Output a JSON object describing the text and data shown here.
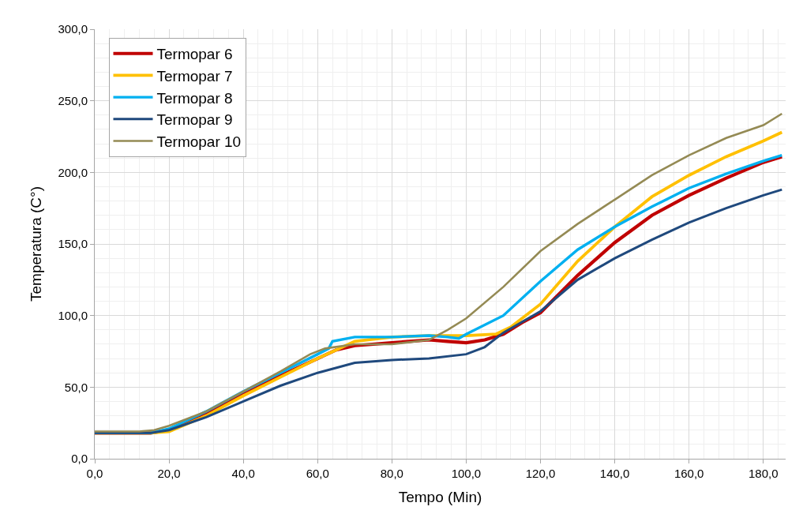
{
  "chart_data": {
    "type": "line",
    "xlabel": "Tempo (Min)",
    "ylabel": "Temperatura (C°)",
    "xlim": [
      0,
      186
    ],
    "ylim": [
      0,
      300
    ],
    "xticks": [
      {
        "value": 0,
        "label": "0,0"
      },
      {
        "value": 20,
        "label": "20,0"
      },
      {
        "value": 40,
        "label": "40,0"
      },
      {
        "value": 60,
        "label": "60,0"
      },
      {
        "value": 80,
        "label": "80,0"
      },
      {
        "value": 100,
        "label": "100,0"
      },
      {
        "value": 120,
        "label": "120,0"
      },
      {
        "value": 140,
        "label": "140,0"
      },
      {
        "value": 160,
        "label": "160,0"
      },
      {
        "value": 180,
        "label": "180,0"
      }
    ],
    "yticks": [
      {
        "value": 0,
        "label": "0,0"
      },
      {
        "value": 50,
        "label": "50,0"
      },
      {
        "value": 100,
        "label": "100,0"
      },
      {
        "value": 150,
        "label": "150,0"
      },
      {
        "value": 200,
        "label": "200,0"
      },
      {
        "value": 250,
        "label": "250,0"
      },
      {
        "value": 300,
        "label": "300,0"
      }
    ],
    "grid": true,
    "legend": "top left",
    "marker": "none",
    "line_style": "solid",
    "series": [
      {
        "name": "Termopar 6",
        "color": "#c00000",
        "x": [
          0,
          15,
          20,
          30,
          40,
          50,
          60,
          65,
          70,
          80,
          90,
          95,
          100,
          105,
          110,
          115,
          120,
          130,
          140,
          150,
          160,
          170,
          180,
          185
        ],
        "values": [
          18,
          18,
          20,
          31,
          45,
          58,
          70,
          76,
          79,
          81,
          83,
          82,
          81,
          83,
          87,
          95,
          102,
          128,
          151,
          170,
          184,
          196,
          207,
          211
        ]
      },
      {
        "name": "Termopar 7",
        "color": "#ffc000",
        "x": [
          0,
          15,
          20,
          30,
          40,
          50,
          60,
          65,
          70,
          80,
          90,
          100,
          108,
          112,
          120,
          130,
          140,
          150,
          160,
          170,
          180,
          185
        ],
        "values": [
          18,
          18,
          19,
          30,
          44,
          57,
          70,
          76,
          82,
          85,
          86,
          86,
          87,
          92,
          108,
          138,
          162,
          183,
          198,
          211,
          222,
          228
        ]
      },
      {
        "name": "Termopar 8",
        "color": "#00b0f0",
        "x": [
          0,
          15,
          20,
          30,
          40,
          50,
          60,
          63,
          64,
          70,
          80,
          90,
          95,
          98,
          100,
          110,
          120,
          130,
          140,
          150,
          160,
          170,
          180,
          185
        ],
        "values": [
          18,
          18,
          21,
          33,
          47,
          60,
          73,
          77,
          82,
          85,
          85,
          86,
          85,
          84,
          87,
          100,
          124,
          146,
          162,
          176,
          189,
          199,
          208,
          212
        ]
      },
      {
        "name": "Termopar 9",
        "color": "#1f497d",
        "x": [
          0,
          15,
          20,
          30,
          40,
          50,
          60,
          70,
          80,
          90,
          100,
          105,
          110,
          120,
          130,
          140,
          150,
          160,
          170,
          180,
          185
        ],
        "values": [
          18,
          18,
          20,
          29,
          40,
          51,
          60,
          67,
          69,
          70,
          73,
          78,
          88,
          103,
          125,
          140,
          153,
          165,
          175,
          184,
          188
        ]
      },
      {
        "name": "Termopar 10",
        "color": "#948a54",
        "x": [
          0,
          12,
          16,
          20,
          30,
          40,
          50,
          58,
          62,
          70,
          80,
          90,
          95,
          100,
          110,
          120,
          130,
          140,
          150,
          160,
          170,
          180,
          185
        ],
        "values": [
          19,
          19,
          20,
          23,
          33,
          47,
          61,
          73,
          77,
          80,
          80,
          83,
          90,
          98,
          120,
          145,
          164,
          181,
          198,
          212,
          224,
          233,
          241
        ]
      }
    ]
  }
}
